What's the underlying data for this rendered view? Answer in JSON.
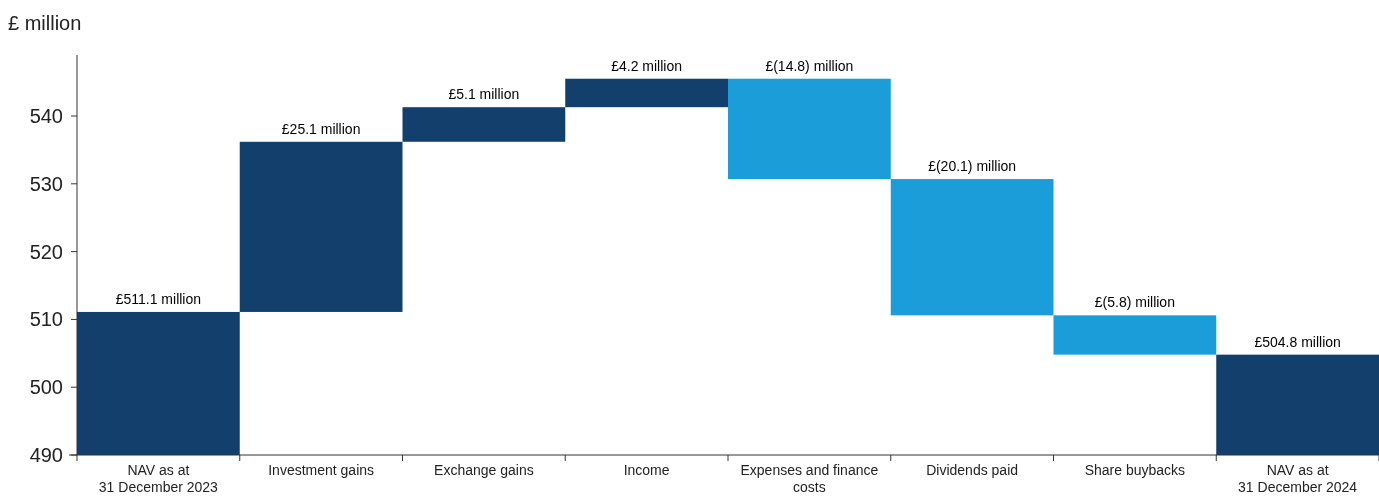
{
  "chart_data": {
    "type": "bar",
    "ylabel": "£ million",
    "categories": [
      "NAV as at\n31 December 2023",
      "Investment gains",
      "Exchange gains",
      "Income",
      "Expenses and finance\ncosts",
      "Dividends paid",
      "Share buybacks",
      "NAV as at\n31 December 2024"
    ],
    "values": [
      21.1,
      25.1,
      5.1,
      4.2,
      -14.8,
      -20.1,
      -5.8,
      14.8
    ],
    "base": [
      490,
      511.1,
      536.2,
      541.3,
      545.5,
      530.7,
      510.6,
      490
    ],
    "colors": [
      "#123f6b",
      "#123f6b",
      "#123f6b",
      "#123f6b",
      "#1a9dd9",
      "#1a9dd9",
      "#1a9dd9",
      "#123f6b"
    ],
    "value_labels": [
      "£511.1 million",
      "£25.1 million",
      "£5.1 million",
      "£4.2 million",
      "£(14.8) million",
      "£(20.1) million",
      "£(5.8) million",
      "£504.8 million"
    ],
    "ylim": [
      490,
      549
    ],
    "yticks": [
      490,
      500,
      510,
      520,
      530,
      540
    ]
  }
}
